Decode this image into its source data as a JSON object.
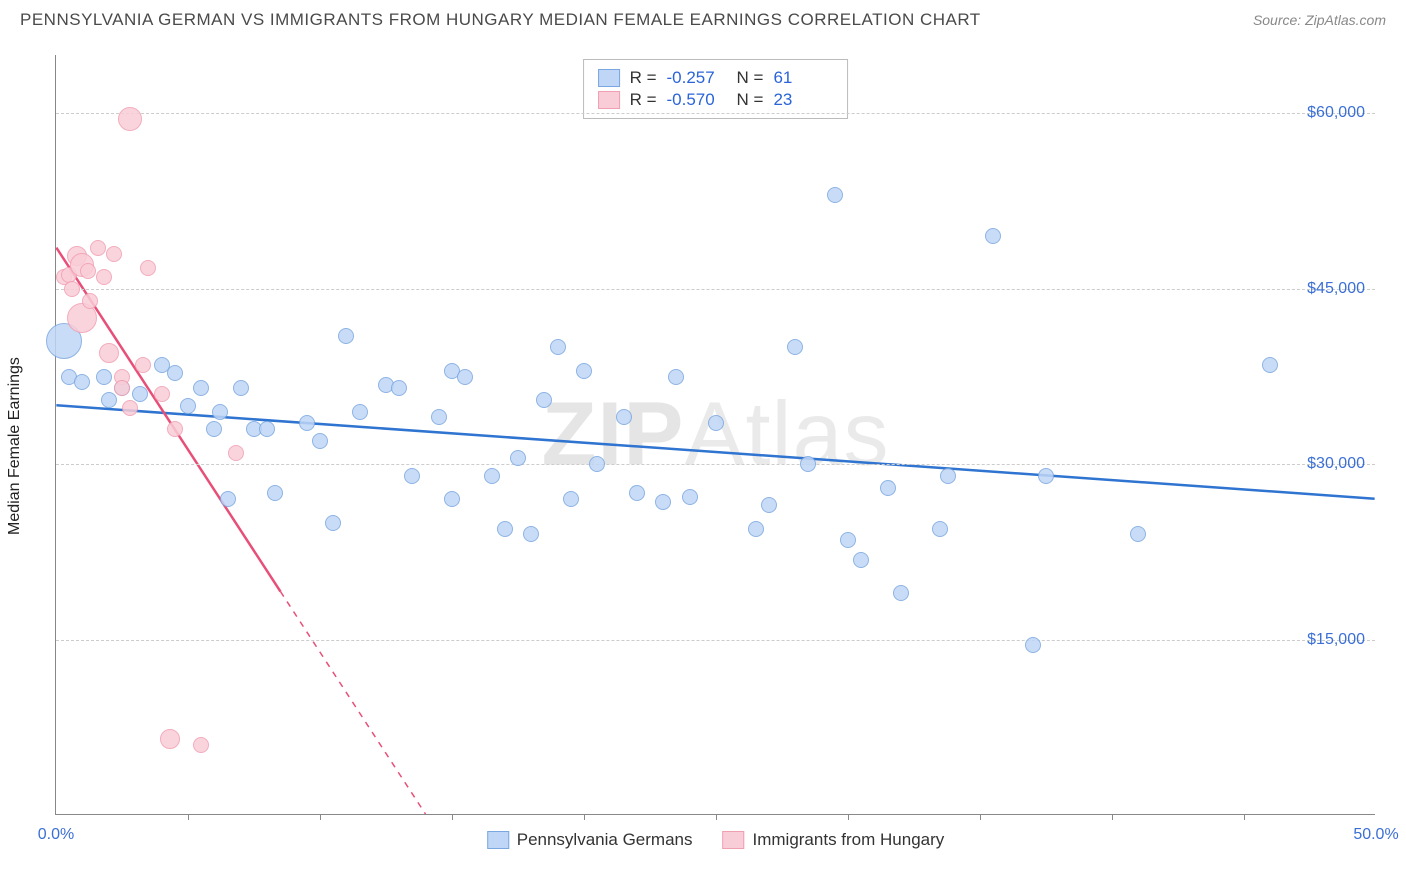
{
  "title": "PENNSYLVANIA GERMAN VS IMMIGRANTS FROM HUNGARY MEDIAN FEMALE EARNINGS CORRELATION CHART",
  "source": "Source: ZipAtlas.com",
  "y_axis_label": "Median Female Earnings",
  "watermark_main": "ZIP",
  "watermark_sub": "Atlas",
  "chart": {
    "type": "scatter",
    "xlim": [
      0,
      50
    ],
    "ylim": [
      0,
      65000
    ],
    "x_ticks": [
      0,
      50
    ],
    "x_tick_labels": [
      "0.0%",
      "50.0%"
    ],
    "x_minor_ticks": [
      5,
      10,
      15,
      20,
      25,
      30,
      35,
      40,
      45
    ],
    "y_ticks": [
      15000,
      30000,
      45000,
      60000
    ],
    "y_tick_labels": [
      "$15,000",
      "$30,000",
      "$45,000",
      "$60,000"
    ],
    "grid_color": "#cccccc",
    "background_color": "#ffffff",
    "axis_color": "#888888"
  },
  "series": [
    {
      "name": "Pennsylvania Germans",
      "fill": "#bfd6f6",
      "stroke": "#7aa7e0",
      "line_color": "#2f74d0",
      "R": "-0.257",
      "N": "61",
      "reg_line": {
        "x1": 0,
        "y1": 35000,
        "x2": 50,
        "y2": 27000,
        "dash_after_x": null
      },
      "points": [
        {
          "x": 0.3,
          "y": 40500,
          "r": 18
        },
        {
          "x": 0.5,
          "y": 37500,
          "r": 8
        },
        {
          "x": 1.0,
          "y": 37000,
          "r": 8
        },
        {
          "x": 1.8,
          "y": 37500,
          "r": 8
        },
        {
          "x": 2.0,
          "y": 35500,
          "r": 8
        },
        {
          "x": 2.5,
          "y": 36500,
          "r": 8
        },
        {
          "x": 3.2,
          "y": 36000,
          "r": 8
        },
        {
          "x": 4.0,
          "y": 38500,
          "r": 8
        },
        {
          "x": 4.5,
          "y": 37800,
          "r": 8
        },
        {
          "x": 5.0,
          "y": 35000,
          "r": 8
        },
        {
          "x": 5.5,
          "y": 36500,
          "r": 8
        },
        {
          "x": 6.0,
          "y": 33000,
          "r": 8
        },
        {
          "x": 6.2,
          "y": 34500,
          "r": 8
        },
        {
          "x": 6.5,
          "y": 27000,
          "r": 8
        },
        {
          "x": 7.0,
          "y": 36500,
          "r": 8
        },
        {
          "x": 7.5,
          "y": 33000,
          "r": 8
        },
        {
          "x": 8.0,
          "y": 33000,
          "r": 8
        },
        {
          "x": 8.3,
          "y": 27500,
          "r": 8
        },
        {
          "x": 9.5,
          "y": 33500,
          "r": 8
        },
        {
          "x": 10.0,
          "y": 32000,
          "r": 8
        },
        {
          "x": 10.5,
          "y": 25000,
          "r": 8
        },
        {
          "x": 11.0,
          "y": 41000,
          "r": 8
        },
        {
          "x": 11.5,
          "y": 34500,
          "r": 8
        },
        {
          "x": 12.5,
          "y": 36800,
          "r": 8
        },
        {
          "x": 13.0,
          "y": 36500,
          "r": 8
        },
        {
          "x": 13.5,
          "y": 29000,
          "r": 8
        },
        {
          "x": 14.5,
          "y": 34000,
          "r": 8
        },
        {
          "x": 15.0,
          "y": 27000,
          "r": 8
        },
        {
          "x": 15.0,
          "y": 38000,
          "r": 8
        },
        {
          "x": 15.5,
          "y": 37500,
          "r": 8
        },
        {
          "x": 16.5,
          "y": 29000,
          "r": 8
        },
        {
          "x": 17.0,
          "y": 24500,
          "r": 8
        },
        {
          "x": 17.5,
          "y": 30500,
          "r": 8
        },
        {
          "x": 18.0,
          "y": 24000,
          "r": 8
        },
        {
          "x": 18.5,
          "y": 35500,
          "r": 8
        },
        {
          "x": 19.0,
          "y": 40000,
          "r": 8
        },
        {
          "x": 19.5,
          "y": 27000,
          "r": 8
        },
        {
          "x": 20.0,
          "y": 38000,
          "r": 8
        },
        {
          "x": 20.5,
          "y": 30000,
          "r": 8
        },
        {
          "x": 21.5,
          "y": 34000,
          "r": 8
        },
        {
          "x": 22.0,
          "y": 27500,
          "r": 8
        },
        {
          "x": 23.5,
          "y": 37500,
          "r": 8
        },
        {
          "x": 23.0,
          "y": 26800,
          "r": 8
        },
        {
          "x": 24.0,
          "y": 27200,
          "r": 8
        },
        {
          "x": 25.0,
          "y": 33500,
          "r": 8
        },
        {
          "x": 26.5,
          "y": 24500,
          "r": 8
        },
        {
          "x": 28.0,
          "y": 40000,
          "r": 8
        },
        {
          "x": 28.5,
          "y": 30000,
          "r": 8
        },
        {
          "x": 29.5,
          "y": 53000,
          "r": 8
        },
        {
          "x": 30.0,
          "y": 23500,
          "r": 8
        },
        {
          "x": 30.5,
          "y": 21800,
          "r": 8
        },
        {
          "x": 31.5,
          "y": 28000,
          "r": 8
        },
        {
          "x": 32.0,
          "y": 19000,
          "r": 8
        },
        {
          "x": 33.5,
          "y": 24500,
          "r": 8
        },
        {
          "x": 33.8,
          "y": 29000,
          "r": 8
        },
        {
          "x": 35.5,
          "y": 49500,
          "r": 8
        },
        {
          "x": 37.0,
          "y": 14500,
          "r": 8
        },
        {
          "x": 37.5,
          "y": 29000,
          "r": 8
        },
        {
          "x": 41.0,
          "y": 24000,
          "r": 8
        },
        {
          "x": 46.0,
          "y": 38500,
          "r": 8
        },
        {
          "x": 27.0,
          "y": 26500,
          "r": 8
        }
      ]
    },
    {
      "name": "Immigrants from Hungary",
      "fill": "#f9cdd7",
      "stroke": "#f19eb2",
      "line_color": "#e84f78",
      "R": "-0.570",
      "N": "23",
      "reg_line": {
        "x1": 0,
        "y1": 48500,
        "x2": 14,
        "y2": 0,
        "dash_after_x": 8.5
      },
      "points": [
        {
          "x": 0.3,
          "y": 46000,
          "r": 8
        },
        {
          "x": 0.5,
          "y": 46200,
          "r": 8
        },
        {
          "x": 0.6,
          "y": 45000,
          "r": 8
        },
        {
          "x": 0.8,
          "y": 47800,
          "r": 10
        },
        {
          "x": 1.0,
          "y": 47000,
          "r": 12
        },
        {
          "x": 1.0,
          "y": 42500,
          "r": 15
        },
        {
          "x": 1.2,
          "y": 46500,
          "r": 8
        },
        {
          "x": 1.3,
          "y": 44000,
          "r": 8
        },
        {
          "x": 1.6,
          "y": 48500,
          "r": 8
        },
        {
          "x": 1.8,
          "y": 46000,
          "r": 8
        },
        {
          "x": 2.0,
          "y": 39500,
          "r": 10
        },
        {
          "x": 2.2,
          "y": 48000,
          "r": 8
        },
        {
          "x": 2.5,
          "y": 37500,
          "r": 8
        },
        {
          "x": 2.5,
          "y": 36500,
          "r": 8
        },
        {
          "x": 2.8,
          "y": 34800,
          "r": 8
        },
        {
          "x": 2.8,
          "y": 59500,
          "r": 12
        },
        {
          "x": 3.3,
          "y": 38500,
          "r": 8
        },
        {
          "x": 3.5,
          "y": 46800,
          "r": 8
        },
        {
          "x": 4.0,
          "y": 36000,
          "r": 8
        },
        {
          "x": 4.5,
          "y": 33000,
          "r": 8
        },
        {
          "x": 6.8,
          "y": 31000,
          "r": 8
        },
        {
          "x": 4.3,
          "y": 6500,
          "r": 10
        },
        {
          "x": 5.5,
          "y": 6000,
          "r": 8
        }
      ]
    }
  ]
}
